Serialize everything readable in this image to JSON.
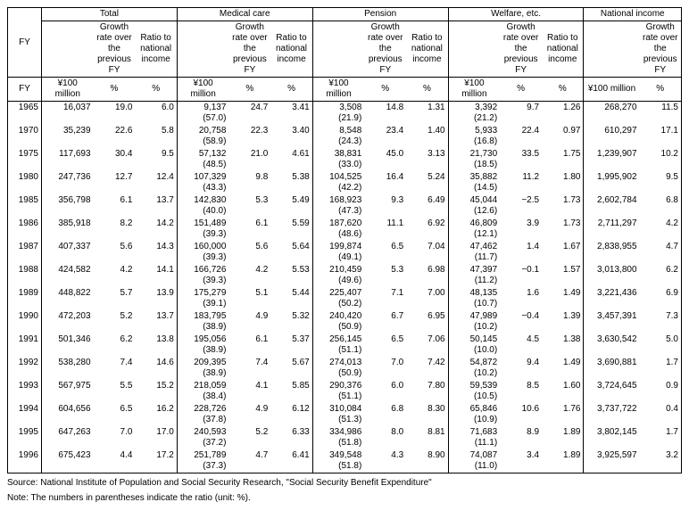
{
  "headers": {
    "fy": "FY",
    "total": "Total",
    "medical": "Medical care",
    "pension": "Pension",
    "welfare": "Welfare, etc.",
    "national": "National income",
    "growth": "Growth rate over the previous FY",
    "ratio": "Ratio to national income",
    "unit_val": "¥100 million",
    "unit_pct": "%"
  },
  "rows": [
    {
      "fy": "1965",
      "t_v": "16,037",
      "t_g": "19.0",
      "t_r": "6.0",
      "m_v": "9,137",
      "m_p": "(57.0)",
      "m_g": "24.7",
      "m_r": "3.41",
      "p_v": "3,508",
      "p_p": "(21.9)",
      "p_g": "14.8",
      "p_r": "1.31",
      "w_v": "3,392",
      "w_p": "(21.2)",
      "w_g": "9.7",
      "w_r": "1.26",
      "n_v": "268,270",
      "n_g": "11.5"
    },
    {
      "fy": "1970",
      "t_v": "35,239",
      "t_g": "22.6",
      "t_r": "5.8",
      "m_v": "20,758",
      "m_p": "(58.9)",
      "m_g": "22.3",
      "m_r": "3.40",
      "p_v": "8,548",
      "p_p": "(24.3)",
      "p_g": "23.4",
      "p_r": "1.40",
      "w_v": "5,933",
      "w_p": "(16.8)",
      "w_g": "22.4",
      "w_r": "0.97",
      "n_v": "610,297",
      "n_g": "17.1"
    },
    {
      "fy": "1975",
      "t_v": "117,693",
      "t_g": "30.4",
      "t_r": "9.5",
      "m_v": "57,132",
      "m_p": "(48.5)",
      "m_g": "21.0",
      "m_r": "4.61",
      "p_v": "38,831",
      "p_p": "(33.0)",
      "p_g": "45.0",
      "p_r": "3.13",
      "w_v": "21,730",
      "w_p": "(18.5)",
      "w_g": "33.5",
      "w_r": "1.75",
      "n_v": "1,239,907",
      "n_g": "10.2"
    },
    {
      "fy": "1980",
      "t_v": "247,736",
      "t_g": "12.7",
      "t_r": "12.4",
      "m_v": "107,329",
      "m_p": "(43.3)",
      "m_g": "9.8",
      "m_r": "5.38",
      "p_v": "104,525",
      "p_p": "(42.2)",
      "p_g": "16.4",
      "p_r": "5.24",
      "w_v": "35,882",
      "w_p": "(14.5)",
      "w_g": "11.2",
      "w_r": "1.80",
      "n_v": "1,995,902",
      "n_g": "9.5"
    },
    {
      "fy": "1985",
      "t_v": "356,798",
      "t_g": "6.1",
      "t_r": "13.7",
      "m_v": "142,830",
      "m_p": "(40.0)",
      "m_g": "5.3",
      "m_r": "5.49",
      "p_v": "168,923",
      "p_p": "(47.3)",
      "p_g": "9.3",
      "p_r": "6.49",
      "w_v": "45,044",
      "w_p": "(12.6)",
      "w_g": "−2.5",
      "w_r": "1.73",
      "n_v": "2,602,784",
      "n_g": "6.8"
    },
    {
      "fy": "1986",
      "t_v": "385,918",
      "t_g": "8.2",
      "t_r": "14.2",
      "m_v": "151,489",
      "m_p": "(39.3)",
      "m_g": "6.1",
      "m_r": "5.59",
      "p_v": "187,620",
      "p_p": "(48.6)",
      "p_g": "11.1",
      "p_r": "6.92",
      "w_v": "46,809",
      "w_p": "(12.1)",
      "w_g": "3.9",
      "w_r": "1.73",
      "n_v": "2,711,297",
      "n_g": "4.2"
    },
    {
      "fy": "1987",
      "t_v": "407,337",
      "t_g": "5.6",
      "t_r": "14.3",
      "m_v": "160,000",
      "m_p": "(39.3)",
      "m_g": "5.6",
      "m_r": "5.64",
      "p_v": "199,874",
      "p_p": "(49.1)",
      "p_g": "6.5",
      "p_r": "7.04",
      "w_v": "47,462",
      "w_p": "(11.7)",
      "w_g": "1.4",
      "w_r": "1.67",
      "n_v": "2,838,955",
      "n_g": "4.7"
    },
    {
      "fy": "1988",
      "t_v": "424,582",
      "t_g": "4.2",
      "t_r": "14.1",
      "m_v": "166,726",
      "m_p": "(39.3)",
      "m_g": "4.2",
      "m_r": "5.53",
      "p_v": "210,459",
      "p_p": "(49.6)",
      "p_g": "5.3",
      "p_r": "6.98",
      "w_v": "47,397",
      "w_p": "(11.2)",
      "w_g": "−0.1",
      "w_r": "1.57",
      "n_v": "3,013,800",
      "n_g": "6.2"
    },
    {
      "fy": "1989",
      "t_v": "448,822",
      "t_g": "5.7",
      "t_r": "13.9",
      "m_v": "175,279",
      "m_p": "(39.1)",
      "m_g": "5.1",
      "m_r": "5.44",
      "p_v": "225,407",
      "p_p": "(50.2)",
      "p_g": "7.1",
      "p_r": "7.00",
      "w_v": "48,135",
      "w_p": "(10.7)",
      "w_g": "1.6",
      "w_r": "1.49",
      "n_v": "3,221,436",
      "n_g": "6.9"
    },
    {
      "fy": "1990",
      "t_v": "472,203",
      "t_g": "5.2",
      "t_r": "13.7",
      "m_v": "183,795",
      "m_p": "(38.9)",
      "m_g": "4.9",
      "m_r": "5.32",
      "p_v": "240,420",
      "p_p": "(50.9)",
      "p_g": "6.7",
      "p_r": "6.95",
      "w_v": "47,989",
      "w_p": "(10.2)",
      "w_g": "−0.4",
      "w_r": "1.39",
      "n_v": "3,457,391",
      "n_g": "7.3"
    },
    {
      "fy": "1991",
      "t_v": "501,346",
      "t_g": "6.2",
      "t_r": "13.8",
      "m_v": "195,056",
      "m_p": "(38.9)",
      "m_g": "6.1",
      "m_r": "5.37",
      "p_v": "256,145",
      "p_p": "(51.1)",
      "p_g": "6.5",
      "p_r": "7.06",
      "w_v": "50,145",
      "w_p": "(10.0)",
      "w_g": "4.5",
      "w_r": "1.38",
      "n_v": "3,630,542",
      "n_g": "5.0"
    },
    {
      "fy": "1992",
      "t_v": "538,280",
      "t_g": "7.4",
      "t_r": "14.6",
      "m_v": "209,395",
      "m_p": "(38.9)",
      "m_g": "7.4",
      "m_r": "5.67",
      "p_v": "274,013",
      "p_p": "(50.9)",
      "p_g": "7.0",
      "p_r": "7.42",
      "w_v": "54,872",
      "w_p": "(10.2)",
      "w_g": "9.4",
      "w_r": "1.49",
      "n_v": "3,690,881",
      "n_g": "1.7"
    },
    {
      "fy": "1993",
      "t_v": "567,975",
      "t_g": "5.5",
      "t_r": "15.2",
      "m_v": "218,059",
      "m_p": "(38.4)",
      "m_g": "4.1",
      "m_r": "5.85",
      "p_v": "290,376",
      "p_p": "(51.1)",
      "p_g": "6.0",
      "p_r": "7.80",
      "w_v": "59,539",
      "w_p": "(10.5)",
      "w_g": "8.5",
      "w_r": "1.60",
      "n_v": "3,724,645",
      "n_g": "0.9"
    },
    {
      "fy": "1994",
      "t_v": "604,656",
      "t_g": "6.5",
      "t_r": "16.2",
      "m_v": "228,726",
      "m_p": "(37.8)",
      "m_g": "4.9",
      "m_r": "6.12",
      "p_v": "310,084",
      "p_p": "(51.3)",
      "p_g": "6.8",
      "p_r": "8.30",
      "w_v": "65,846",
      "w_p": "(10.9)",
      "w_g": "10.6",
      "w_r": "1.76",
      "n_v": "3,737,722",
      "n_g": "0.4"
    },
    {
      "fy": "1995",
      "t_v": "647,263",
      "t_g": "7.0",
      "t_r": "17.0",
      "m_v": "240,593",
      "m_p": "(37.2)",
      "m_g": "5.2",
      "m_r": "6.33",
      "p_v": "334,986",
      "p_p": "(51.8)",
      "p_g": "8.0",
      "p_r": "8.81",
      "w_v": "71,683",
      "w_p": "(11.1)",
      "w_g": "8.9",
      "w_r": "1.89",
      "n_v": "3,802,145",
      "n_g": "1.7"
    },
    {
      "fy": "1996",
      "t_v": "675,423",
      "t_g": "4.4",
      "t_r": "17.2",
      "m_v": "251,789",
      "m_p": "(37.3)",
      "m_g": "4.7",
      "m_r": "6.41",
      "p_v": "349,548",
      "p_p": "(51.8)",
      "p_g": "4.3",
      "p_r": "8.90",
      "w_v": "74,087",
      "w_p": "(11.0)",
      "w_g": "3.4",
      "w_r": "1.89",
      "n_v": "3,925,597",
      "n_g": "3.2"
    }
  ],
  "source": "Source:  National Institute of Population and Social Security Research, \"Social Security Benefit Expenditure\"",
  "note": "Note: The numbers in parentheses indicate the ratio (unit: %)."
}
